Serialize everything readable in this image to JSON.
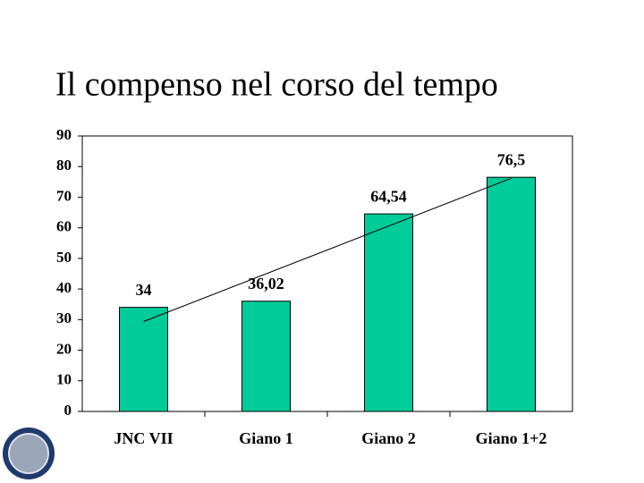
{
  "chart_data": {
    "type": "bar",
    "title": "Il compenso nel corso del tempo",
    "categories": [
      "JNC VII",
      "Giano 1",
      "Giano 2",
      "Giano 1+2"
    ],
    "values": [
      34,
      36.02,
      64.54,
      76.5
    ],
    "value_labels": [
      "34",
      "36,02",
      "64,54",
      "76,5"
    ],
    "color": "#00cc99",
    "ylim": [
      0,
      90
    ],
    "yticks": [
      0,
      10,
      20,
      30,
      40,
      50,
      60,
      70,
      80,
      90
    ],
    "trendline": "linear"
  }
}
